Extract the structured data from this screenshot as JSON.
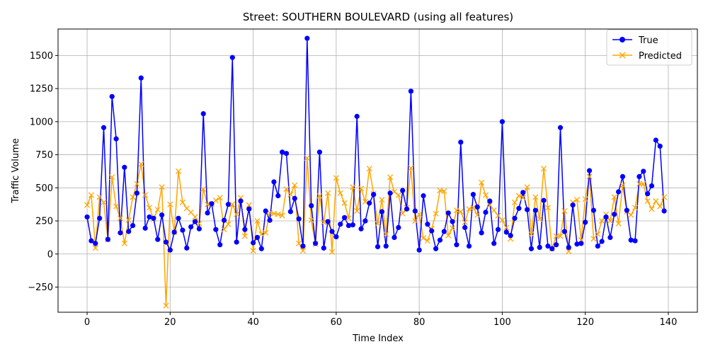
{
  "chart_data": {
    "type": "line",
    "title": "Street: SOUTHERN BOULEVARD (using all features)",
    "xlabel": "Time Index",
    "ylabel": "Traffic Volume",
    "xlim": [
      -7,
      147
    ],
    "ylim": [
      -440,
      1700
    ],
    "xticks": [
      0,
      20,
      40,
      60,
      80,
      100,
      120,
      140
    ],
    "yticks": [
      -250,
      0,
      250,
      500,
      750,
      1000,
      1250,
      1500
    ],
    "grid": true,
    "legend": "top-right",
    "series": [
      {
        "name": "True",
        "color": "#0000ff",
        "marker": "circle",
        "values": [
          280,
          100,
          80,
          270,
          955,
          110,
          1190,
          870,
          160,
          655,
          170,
          215,
          460,
          1330,
          195,
          280,
          270,
          110,
          295,
          90,
          30,
          165,
          270,
          180,
          45,
          205,
          245,
          190,
          1060,
          310,
          380,
          185,
          70,
          255,
          375,
          1485,
          90,
          400,
          185,
          340,
          85,
          125,
          40,
          325,
          255,
          545,
          440,
          770,
          760,
          320,
          420,
          265,
          60,
          1630,
          365,
          80,
          770,
          45,
          245,
          170,
          130,
          225,
          275,
          215,
          220,
          1040,
          190,
          250,
          385,
          450,
          55,
          320,
          60,
          460,
          125,
          200,
          480,
          340,
          1230,
          325,
          30,
          440,
          225,
          175,
          40,
          105,
          170,
          310,
          245,
          70,
          845,
          200,
          60,
          450,
          355,
          160,
          315,
          400,
          80,
          185,
          1000,
          165,
          140,
          270,
          345,
          465,
          335,
          40,
          330,
          50,
          405,
          60,
          40,
          70,
          955,
          170,
          50,
          370,
          75,
          80,
          240,
          630,
          330,
          60,
          95,
          280,
          125,
          300,
          470,
          585,
          330,
          105,
          100,
          585,
          625,
          455,
          515,
          860,
          815,
          325
        ]
      },
      {
        "name": "Predicted",
        "color": "#ffa500",
        "marker": "x",
        "values": [
          370,
          445,
          45,
          430,
          390,
          110,
          580,
          360,
          270,
          80,
          255,
          430,
          530,
          680,
          445,
          350,
          265,
          335,
          505,
          -390,
          375,
          165,
          625,
          390,
          345,
          315,
          280,
          230,
          490,
          375,
          375,
          405,
          425,
          185,
          225,
          375,
          300,
          425,
          135,
          370,
          25,
          250,
          150,
          160,
          310,
          305,
          300,
          290,
          490,
          450,
          520,
          80,
          25,
          725,
          255,
          75,
          440,
          240,
          460,
          15,
          575,
          460,
          385,
          270,
          505,
          325,
          495,
          395,
          645,
          455,
          230,
          410,
          150,
          580,
          470,
          445,
          305,
          350,
          650,
          250,
          300,
          120,
          100,
          190,
          305,
          480,
          475,
          140,
          195,
          330,
          320,
          240,
          340,
          350,
          295,
          540,
          445,
          370,
          330,
          290,
          255,
          200,
          115,
          390,
          440,
          425,
          505,
          150,
          430,
          265,
          645,
          350,
          40,
          135,
          135,
          325,
          20,
          390,
          410,
          105,
          415,
          585,
          115,
          150,
          250,
          300,
          250,
          430,
          230,
          520,
          320,
          295,
          350,
          530,
          530,
          400,
          340,
          400,
          360,
          430
        ]
      }
    ]
  }
}
